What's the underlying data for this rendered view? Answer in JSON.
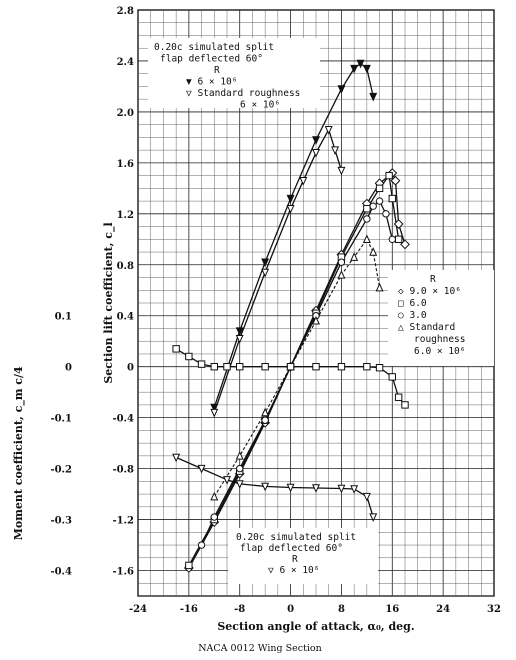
{
  "caption": "NACA 0012 Wing Section",
  "chart_data": {
    "type": "line",
    "xlabel": "Section angle of attack, α₀, deg.",
    "ylabel_left": "Moment coefficient, c_m c/4",
    "ylabel_right": "Section lift coefficient, c_l",
    "xlim": [
      -24,
      32
    ],
    "ylim_lift": [
      -1.8,
      2.8
    ],
    "ylim_moment": [
      -0.5,
      0.1
    ],
    "x_ticks": [
      "-24",
      "-16",
      "-8",
      "0",
      "8",
      "16",
      "24",
      "32"
    ],
    "lift_ticks": [
      "-1.6",
      "-1.2",
      "-0.8",
      "-0.4",
      "0",
      "0.4",
      "0.8",
      "1.2",
      "1.6",
      "2.0",
      "2.4",
      "2.8"
    ],
    "moment_ticks": [
      "0.1",
      "0",
      "-0.1",
      "-0.2",
      "-0.3",
      "-0.4"
    ],
    "annotations": {
      "flap_top": [
        "0.20c simulated split",
        "flap deflected 60°",
        "R",
        "▼ 6 × 10⁶",
        "▽ Standard roughness",
        "6 × 10⁶"
      ],
      "legend_right": [
        "R",
        "◇ 9.0 × 10⁶",
        "□ 6.0",
        "○ 3.0",
        "△ Standard",
        "roughness",
        "6.0 × 10⁶"
      ],
      "flap_bottom": [
        "0.20c simulated split",
        "flap deflected 60°",
        "R",
        "▽ 6 × 10⁶"
      ]
    },
    "series": [
      {
        "name": "9.0 × 10⁶",
        "marker": "diamond",
        "kind": "lift",
        "x": [
          -16,
          -12,
          -8,
          -4,
          0,
          4,
          8,
          12,
          14,
          16,
          16.5,
          17,
          18
        ],
        "y": [
          -1.58,
          -1.22,
          -0.84,
          -0.44,
          0.0,
          0.44,
          0.88,
          1.28,
          1.44,
          1.52,
          1.46,
          1.12,
          0.96
        ]
      },
      {
        "name": "6.0",
        "marker": "square",
        "kind": "lift",
        "x": [
          -16,
          -12,
          -8,
          -4,
          0,
          4,
          8,
          12,
          14,
          15.5,
          16,
          17
        ],
        "y": [
          -1.56,
          -1.2,
          -0.82,
          -0.42,
          0.0,
          0.42,
          0.86,
          1.24,
          1.4,
          1.5,
          1.32,
          1.0
        ]
      },
      {
        "name": "3.0",
        "marker": "circle",
        "kind": "lift",
        "x": [
          -14,
          -12,
          -8,
          -4,
          0,
          4,
          8,
          12,
          13,
          14,
          15,
          16
        ],
        "y": [
          -1.4,
          -1.18,
          -0.8,
          -0.42,
          0.0,
          0.4,
          0.82,
          1.16,
          1.26,
          1.3,
          1.2,
          1.0
        ]
      },
      {
        "name": "Standard roughness 6.0 × 10⁶",
        "marker": "triangle",
        "kind": "lift",
        "x": [
          -12,
          -8,
          -4,
          0,
          4,
          8,
          10,
          12,
          13,
          14
        ],
        "y": [
          -1.02,
          -0.7,
          -0.36,
          0.0,
          0.36,
          0.72,
          0.86,
          1.0,
          0.9,
          0.62
        ]
      },
      {
        "name": "Flap 6 × 10⁶",
        "marker": "triangle-down-filled",
        "kind": "lift",
        "x": [
          -12,
          -8,
          -4,
          0,
          4,
          8,
          10,
          11,
          12,
          13
        ],
        "y": [
          -0.32,
          0.28,
          0.82,
          1.32,
          1.78,
          2.18,
          2.34,
          2.38,
          2.34,
          2.12
        ]
      },
      {
        "name": "Flap standard roughness 6 × 10⁶",
        "marker": "triangle-down",
        "kind": "lift",
        "x": [
          -12,
          -8,
          -4,
          0,
          2,
          4,
          6,
          7,
          8
        ],
        "y": [
          -0.36,
          0.22,
          0.74,
          1.24,
          1.46,
          1.68,
          1.86,
          1.7,
          1.54
        ]
      },
      {
        "name": "Moment 6.0",
        "marker": "square",
        "kind": "moment",
        "x": [
          -18,
          -16,
          -14,
          -12,
          -10,
          -8,
          -4,
          0,
          4,
          8,
          12,
          14,
          16,
          17,
          18
        ],
        "y": [
          0.035,
          0.02,
          0.005,
          0.0,
          0.0,
          0.0,
          0.0,
          0.0,
          0.0,
          0.0,
          0.0,
          -0.002,
          -0.02,
          -0.06,
          -0.075
        ]
      },
      {
        "name": "Moment flap 6 × 10⁶",
        "marker": "triangle-down",
        "kind": "moment",
        "x": [
          -18,
          -14,
          -10,
          -8,
          -4,
          0,
          4,
          8,
          10,
          12,
          13
        ],
        "y": [
          -0.178,
          -0.2,
          -0.222,
          -0.23,
          -0.235,
          -0.237,
          -0.238,
          -0.239,
          -0.24,
          -0.255,
          -0.295
        ]
      }
    ]
  }
}
